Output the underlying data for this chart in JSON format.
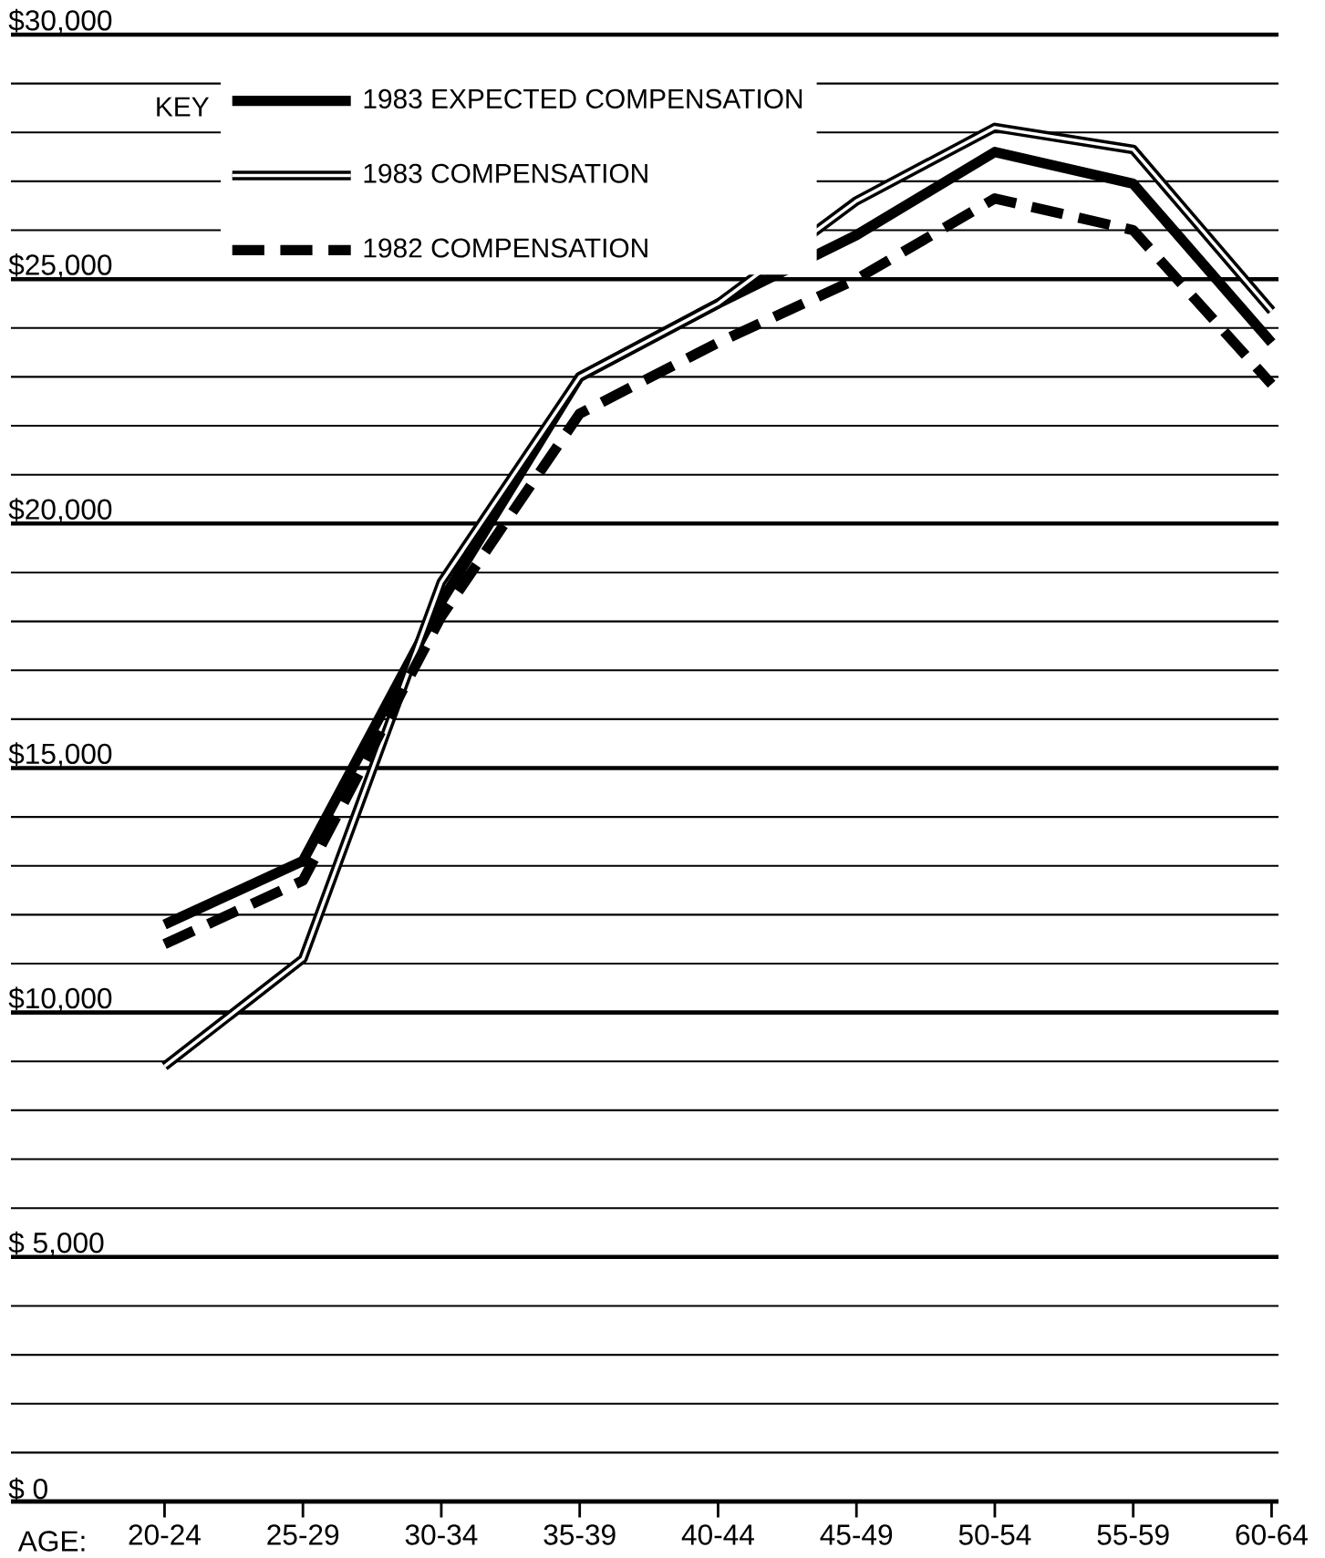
{
  "chart_data": {
    "type": "line",
    "xlabel": "AGE:",
    "legend_title": "KEY",
    "legend": "top left",
    "grid": "y",
    "categories": [
      "20-24",
      "25-29",
      "30-34",
      "35-39",
      "40-44",
      "45-49",
      "50-54",
      "55-59",
      "60-64"
    ],
    "ylim": [
      0,
      30000
    ],
    "yticks": [
      {
        "value": 0,
        "label": "$ 0"
      },
      {
        "value": 1000,
        "label": null
      },
      {
        "value": 2000,
        "label": null
      },
      {
        "value": 3000,
        "label": null
      },
      {
        "value": 4000,
        "label": null
      },
      {
        "value": 5000,
        "label": "$ 5,000"
      },
      {
        "value": 6000,
        "label": null
      },
      {
        "value": 7000,
        "label": null
      },
      {
        "value": 8000,
        "label": null
      },
      {
        "value": 9000,
        "label": null
      },
      {
        "value": 10000,
        "label": "$10,000"
      },
      {
        "value": 11000,
        "label": null
      },
      {
        "value": 12000,
        "label": null
      },
      {
        "value": 13000,
        "label": null
      },
      {
        "value": 14000,
        "label": null
      },
      {
        "value": 15000,
        "label": "$15,000"
      },
      {
        "value": 16000,
        "label": null
      },
      {
        "value": 17000,
        "label": null
      },
      {
        "value": 18000,
        "label": null
      },
      {
        "value": 19000,
        "label": null
      },
      {
        "value": 20000,
        "label": "$20,000"
      },
      {
        "value": 21000,
        "label": null
      },
      {
        "value": 22000,
        "label": null
      },
      {
        "value": 23000,
        "label": null
      },
      {
        "value": 24000,
        "label": null
      },
      {
        "value": 25000,
        "label": "$25,000"
      },
      {
        "value": 26000,
        "label": null
      },
      {
        "value": 27000,
        "label": null
      },
      {
        "value": 28000,
        "label": null
      },
      {
        "value": 29000,
        "label": null
      },
      {
        "value": 30000,
        "label": "$30,000"
      }
    ],
    "series": [
      {
        "name": "1983 EXPECTED COMPENSATION",
        "color": "#000000",
        "line_style": "solid",
        "values": [
          11800,
          13100,
          18400,
          23000,
          24500,
          25900,
          27600,
          26950,
          23700
        ]
      },
      {
        "name": "1983 COMPENSATION",
        "color": "#000000",
        "line_style": "solid",
        "values": [
          8900,
          11100,
          18800,
          23000,
          24500,
          26600,
          28100,
          27650,
          24350
        ]
      },
      {
        "name": "1982 COMPENSATION",
        "color": "#000000",
        "line_style": "dashed",
        "values": [
          11400,
          12700,
          18100,
          22250,
          23700,
          25000,
          26650,
          26000,
          22850
        ]
      }
    ]
  }
}
